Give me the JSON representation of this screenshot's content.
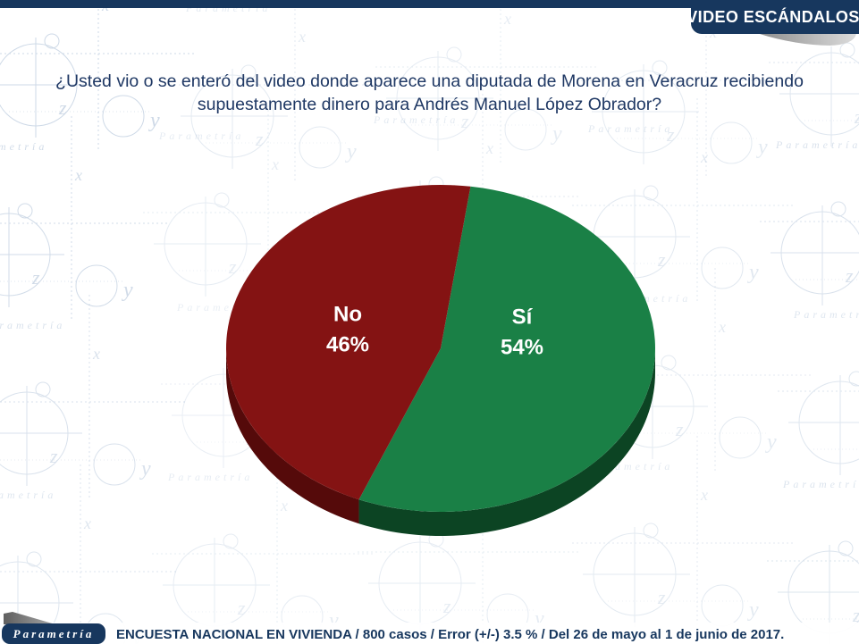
{
  "header": {
    "banner_label": "VIDEO ESCÁNDALOS"
  },
  "question": {
    "text": "¿Usted vio o se enteró del video donde aparece una diputada de Morena en Veracruz recibiendo supuestamente dinero para Andrés Manuel López Obrador?"
  },
  "chart_data": {
    "type": "pie",
    "title": "¿Usted vio o se enteró del video donde aparece una diputada de Morena en Veracruz recibiendo supuestamente dinero para Andrés Manuel López Obrador?",
    "categories": [
      "Sí",
      "No"
    ],
    "values": [
      54,
      46
    ],
    "slices": [
      {
        "label": "Sí",
        "value": 54,
        "display": "54%",
        "color": "#1A8046",
        "side_color": "#0C4423",
        "text_color": "#FFFFFF"
      },
      {
        "label": "No",
        "value": 46,
        "display": "46%",
        "color": "#841313",
        "side_color": "#550A0A",
        "text_color": "#FFFFFF"
      }
    ],
    "legend": "none",
    "style": "3d",
    "start_angle_deg": -82,
    "direction": "clockwise",
    "labels_inside": true
  },
  "footer": {
    "logo": "Parametría",
    "note": "ENCUESTA NACIONAL EN VIVIENDA / 800 casos / Error (+/-) 3.5 % / Del 26 de mayo al 1 de junio de 2017."
  },
  "watermark": {
    "text": "Parametría",
    "letters": [
      "x",
      "y",
      "z"
    ]
  },
  "colors": {
    "navy": "#17375E",
    "question_text": "#1F3864",
    "watermark": "#9DB4CF"
  }
}
